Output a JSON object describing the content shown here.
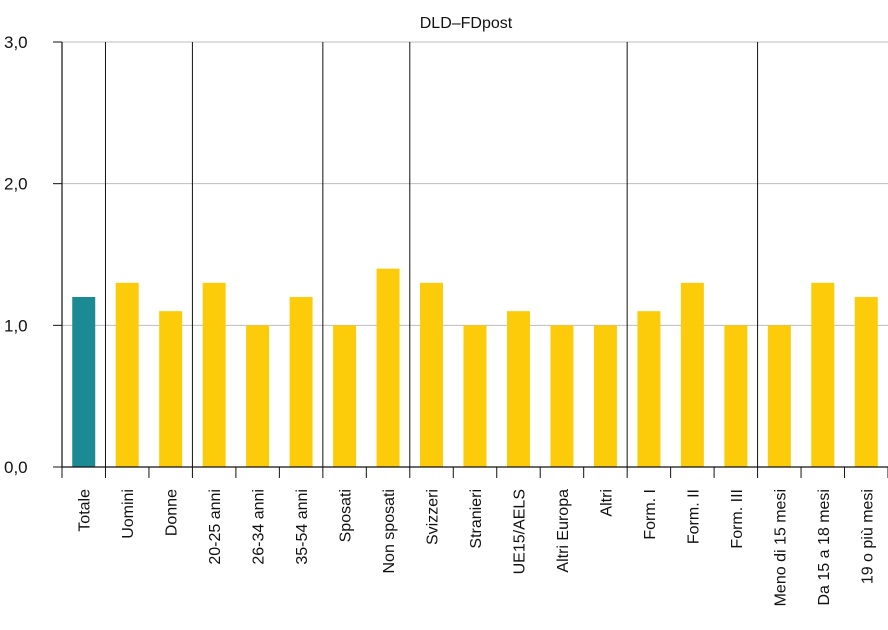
{
  "chart_data": {
    "type": "bar",
    "title": "DLD–FDpost",
    "categories": [
      "Totale",
      "Uomini",
      "Donne",
      "20-25 anni",
      "26-34 anni",
      "35-54 anni",
      "Sposati",
      "Non sposati",
      "Svizzeri",
      "Stranieri",
      "UE15/AELS",
      "Altri Europa",
      "Altri",
      "Form. I",
      "Form. II",
      "Form. III",
      "Meno di 15 mesi",
      "Da 15 a 18 mesi",
      "19 o più mesi"
    ],
    "values": [
      1.2,
      1.3,
      1.1,
      1.3,
      1.0,
      1.2,
      1.0,
      1.4,
      1.3,
      1.0,
      1.1,
      1.0,
      1.0,
      1.1,
      1.3,
      1.0,
      1.0,
      1.3,
      1.2
    ],
    "ylim": [
      0,
      3
    ],
    "yticks": [
      "0,0",
      "1,0",
      "2,0",
      "3,0"
    ],
    "highlight_index": 0,
    "group_separators_after": [
      0,
      2,
      5,
      7,
      12,
      15
    ],
    "grid": true,
    "colors": {
      "highlight": "#1c8a93",
      "bar": "#fccb0a",
      "grid": "#bdbdbd",
      "axis": "#111111"
    }
  }
}
